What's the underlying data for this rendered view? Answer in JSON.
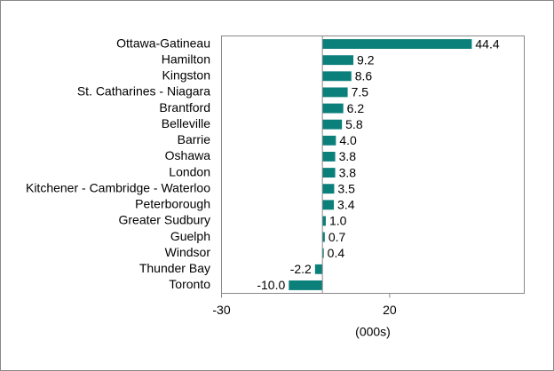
{
  "chart_data": {
    "type": "hbar",
    "categories": [
      "Ottawa-Gatineau",
      "Hamilton",
      "Kingston",
      "St. Catharines - Niagara",
      "Brantford",
      "Belleville",
      "Barrie",
      "Oshawa",
      "London",
      "Kitchener - Cambridge - Waterloo",
      "Peterborough",
      "Greater Sudbury",
      "Guelph",
      "Windsor",
      "Thunder Bay",
      "Toronto"
    ],
    "values": [
      44.4,
      9.2,
      8.6,
      7.5,
      6.2,
      5.8,
      4.0,
      3.8,
      3.8,
      3.5,
      3.4,
      1.0,
      0.7,
      0.4,
      -2.2,
      -10.0
    ],
    "value_labels": [
      "44.4",
      "9.2",
      "8.6",
      "7.5",
      "6.2",
      "5.8",
      "4.0",
      "3.8",
      "3.8",
      "3.5",
      "3.4",
      "1.0",
      "0.7",
      "0.4",
      "-2.2",
      "-10.0"
    ],
    "color": "#0b7f7a",
    "xlim": [
      -30,
      60
    ],
    "xticks": [
      -30,
      20
    ],
    "x_label": "(000s)"
  }
}
